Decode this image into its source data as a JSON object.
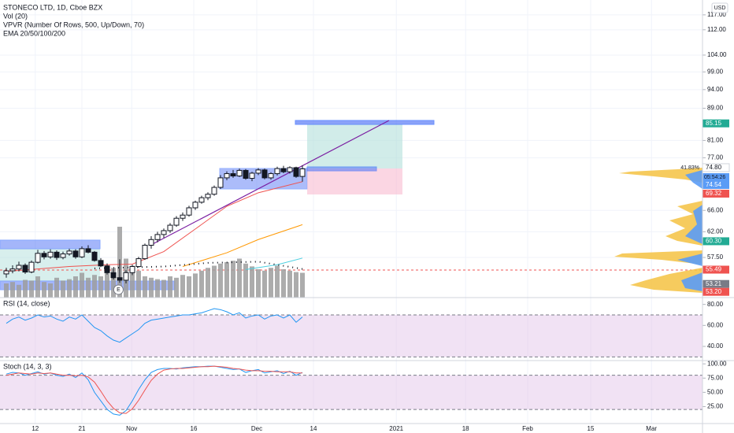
{
  "header": {
    "title": "STONECO LTD, 1D, Cboe BZX",
    "indicators": [
      "Vol (20)",
      "VPVR (Number Of Rows, 500, Up/Down, 70)",
      "EMA 20/50/100/200"
    ],
    "currency": "USD"
  },
  "price_axis": {
    "log": true,
    "ylim": [
      51.13,
      122.2
    ],
    "ticks": [
      {
        "value": 117,
        "label": "117.00"
      },
      {
        "value": 112,
        "label": "112.00"
      },
      {
        "value": 104,
        "label": "104.00"
      },
      {
        "value": 99,
        "label": "99.00"
      },
      {
        "value": 94,
        "label": "94.00"
      },
      {
        "value": 89,
        "label": "89.00"
      },
      {
        "value": 81,
        "label": "81.00"
      },
      {
        "value": 77,
        "label": "77.00"
      },
      {
        "value": 66,
        "label": "66.00"
      },
      {
        "value": 62,
        "label": "62.00"
      },
      {
        "value": 57.5,
        "label": "57.50"
      }
    ]
  },
  "price_tags": [
    {
      "value": 85.15,
      "label": "85.15",
      "color": "#22ab94"
    },
    {
      "value": 74.8,
      "label": "74.80",
      "color": "#ffffff",
      "note": "41.83%"
    },
    {
      "value": 74.54,
      "label": "74.54",
      "color": "#5b9cf6",
      "countdown": "05:54:26"
    },
    {
      "value": 69.32,
      "label": "69.32",
      "color": "#ef5350"
    },
    {
      "value": 60.3,
      "label": "60.30",
      "color": "#22ab94"
    },
    {
      "value": 55.49,
      "label": "55.49",
      "color": "#ef5350"
    },
    {
      "value": 53.21,
      "label": "53.21",
      "color": "#787b86"
    },
    {
      "value": 53.2,
      "label": "53.20",
      "color": "#ef5350"
    }
  ],
  "candles": [
    [
      54.8,
      55.8,
      54.2,
      55.3
    ],
    [
      55.3,
      56.2,
      54.9,
      55.6
    ],
    [
      55.6,
      56.8,
      55.2,
      56.2
    ],
    [
      56.2,
      56.5,
      54.8,
      55.1
    ],
    [
      55.1,
      57.0,
      54.9,
      56.7
    ],
    [
      56.7,
      58.8,
      56.5,
      58.2
    ],
    [
      58.2,
      58.6,
      57.2,
      57.6
    ],
    [
      57.6,
      58.9,
      57.3,
      58.4
    ],
    [
      58.4,
      58.7,
      57.1,
      57.5
    ],
    [
      57.5,
      58.5,
      57.2,
      58.1
    ],
    [
      58.1,
      59.0,
      57.8,
      58.6
    ],
    [
      58.6,
      58.9,
      57.3,
      57.6
    ],
    [
      57.6,
      59.4,
      57.4,
      59.0
    ],
    [
      59.0,
      59.6,
      58.2,
      58.4
    ],
    [
      58.4,
      58.6,
      56.8,
      57.0
    ],
    [
      57.0,
      57.4,
      55.9,
      56.1
    ],
    [
      56.1,
      56.5,
      54.7,
      55.0
    ],
    [
      55.0,
      55.6,
      53.9,
      54.2
    ],
    [
      54.2,
      57.2,
      53.4,
      53.8
    ],
    [
      53.8,
      55.4,
      53.3,
      55.0
    ],
    [
      55.0,
      56.3,
      54.6,
      56.0
    ],
    [
      56.0,
      57.6,
      55.8,
      57.3
    ],
    [
      57.3,
      59.9,
      57.1,
      59.6
    ],
    [
      59.6,
      61.2,
      59.0,
      60.6
    ],
    [
      60.6,
      62.0,
      60.1,
      61.5
    ],
    [
      61.5,
      62.6,
      60.9,
      62.2
    ],
    [
      62.2,
      63.6,
      61.8,
      63.2
    ],
    [
      63.2,
      64.9,
      62.9,
      64.5
    ],
    [
      64.5,
      65.6,
      64.0,
      65.1
    ],
    [
      65.1,
      66.9,
      64.8,
      66.5
    ],
    [
      66.5,
      67.9,
      66.1,
      67.6
    ],
    [
      67.6,
      68.9,
      67.3,
      68.5
    ],
    [
      68.5,
      69.6,
      68.0,
      69.2
    ],
    [
      69.2,
      71.0,
      68.9,
      70.6
    ],
    [
      70.6,
      73.2,
      70.3,
      72.6
    ],
    [
      72.6,
      74.0,
      72.1,
      73.5
    ],
    [
      73.5,
      74.3,
      72.6,
      73.0
    ],
    [
      73.0,
      74.6,
      72.8,
      74.2
    ],
    [
      74.2,
      74.5,
      72.2,
      72.5
    ],
    [
      72.5,
      73.9,
      71.9,
      73.6
    ],
    [
      73.6,
      74.7,
      73.2,
      74.3
    ],
    [
      74.3,
      74.6,
      72.3,
      72.6
    ],
    [
      72.6,
      73.8,
      72.2,
      73.5
    ],
    [
      73.5,
      75.0,
      73.1,
      74.6
    ],
    [
      74.6,
      75.2,
      73.6,
      73.9
    ],
    [
      73.9,
      75.1,
      73.5,
      74.8
    ],
    [
      74.8,
      75.0,
      72.6,
      72.9
    ],
    [
      72.9,
      75.3,
      71.8,
      74.54
    ]
  ],
  "volume": [
    20,
    22,
    18,
    25,
    24,
    30,
    22,
    20,
    28,
    24,
    26,
    30,
    35,
    28,
    32,
    30,
    40,
    42,
    100,
    55,
    45,
    38,
    30,
    28,
    26,
    25,
    30,
    28,
    32,
    30,
    34,
    38,
    42,
    45,
    48,
    50,
    52,
    55,
    48,
    44,
    40,
    38,
    42,
    45,
    40,
    38,
    36,
    35
  ],
  "emas": [
    {
      "color": "#ef5350",
      "points": [
        [
          0,
          55.2
        ],
        [
          10,
          56.0
        ],
        [
          16,
          56.3
        ],
        [
          20,
          56.4
        ],
        [
          25,
          58.5
        ],
        [
          30,
          62.5
        ],
        [
          35,
          66.8
        ],
        [
          40,
          69.5
        ],
        [
          47,
          71.8
        ]
      ]
    },
    {
      "color": "#ff9800",
      "points": [
        [
          28,
          56.0
        ],
        [
          35,
          58.3
        ],
        [
          40,
          60.6
        ],
        [
          47,
          63.3
        ]
      ]
    },
    {
      "color": "#4dd0e1",
      "points": [
        [
          38,
          55.5
        ],
        [
          43,
          56.3
        ],
        [
          47,
          57.4
        ]
      ]
    },
    {
      "color": "#131722",
      "dotted": true,
      "points": [
        [
          14,
          55.7
        ],
        [
          25,
          56.0
        ],
        [
          32,
          56.6
        ],
        [
          40,
          56.8
        ],
        [
          47,
          55.6
        ]
      ]
    }
  ],
  "earnings_marker": "E",
  "rsi": {
    "title": "RSI (14, close)",
    "ylim": [
      28,
      85
    ],
    "band": [
      30,
      70
    ],
    "ticks": [
      {
        "value": 80,
        "label": "80.00"
      },
      {
        "value": 60,
        "label": "60.00"
      },
      {
        "value": 40,
        "label": "40.00"
      }
    ],
    "values": [
      62,
      66,
      68,
      65,
      67,
      70,
      68,
      69,
      66,
      64,
      68,
      66,
      70,
      64,
      58,
      55,
      50,
      46,
      44,
      48,
      52,
      56,
      62,
      65,
      66,
      67,
      68,
      69,
      70,
      70,
      71,
      72,
      74,
      76,
      75,
      73,
      70,
      72,
      67,
      69,
      70,
      66,
      69,
      70,
      67,
      70,
      63,
      68
    ]
  },
  "stoch": {
    "title": "Stoch (14, 3, 3)",
    "ylim": [
      -2,
      103
    ],
    "band": [
      20,
      80
    ],
    "ticks": [
      {
        "value": 100,
        "label": "100.00"
      },
      {
        "value": 75,
        "label": "75.00"
      },
      {
        "value": 50,
        "label": "50.00"
      },
      {
        "value": 25,
        "label": "25.00"
      }
    ],
    "k": [
      82,
      85,
      84,
      80,
      83,
      86,
      82,
      84,
      80,
      78,
      82,
      76,
      84,
      72,
      50,
      35,
      20,
      12,
      10,
      18,
      35,
      55,
      72,
      85,
      90,
      92,
      92,
      91,
      93,
      94,
      95,
      95,
      96,
      96,
      94,
      92,
      90,
      91,
      85,
      88,
      90,
      84,
      86,
      88,
      83,
      87,
      80,
      85
    ],
    "d": [
      80,
      82,
      84,
      83,
      82,
      84,
      83,
      84,
      82,
      80,
      80,
      79,
      80,
      77,
      68,
      52,
      35,
      22,
      14,
      13,
      21,
      36,
      54,
      71,
      82,
      89,
      91,
      92,
      92,
      93,
      94,
      95,
      95,
      96,
      95,
      94,
      92,
      91,
      89,
      88,
      88,
      87,
      87,
      86,
      86,
      86,
      84,
      84
    ]
  },
  "time_axis": [
    {
      "bar": 4.6,
      "label": "12"
    },
    {
      "bar": 12,
      "label": "21"
    },
    {
      "bar": 19.9,
      "label": "Nov"
    },
    {
      "bar": 29.75,
      "label": "16"
    },
    {
      "bar": 39.75,
      "label": "Dec"
    },
    {
      "bar": 48.75,
      "label": "14"
    },
    {
      "bar": 61.9,
      "label": "2021"
    },
    {
      "bar": 72.9,
      "label": "18"
    },
    {
      "bar": 82.75,
      "label": "Feb"
    },
    {
      "bar": 92.75,
      "label": "15"
    },
    {
      "bar": 102.4,
      "label": "Mar"
    }
  ]
}
